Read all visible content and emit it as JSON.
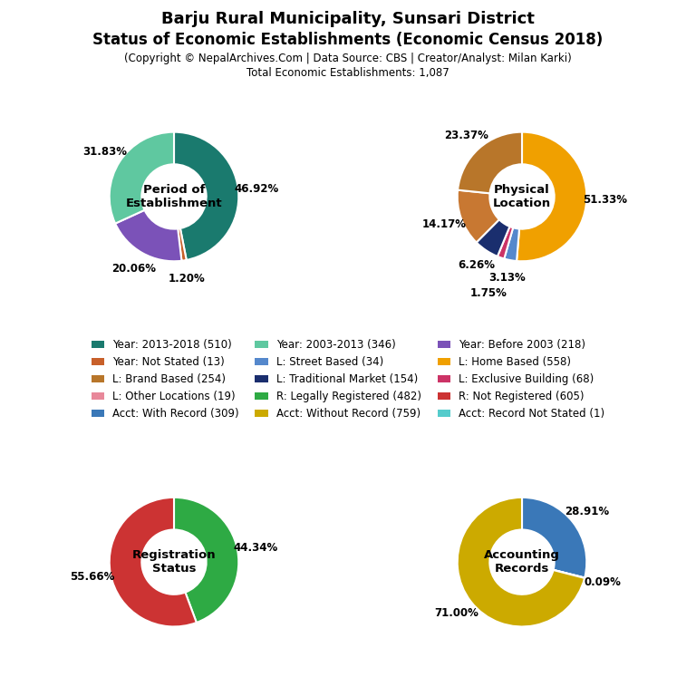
{
  "title": [
    "Barju Rural Municipality, Sunsari District",
    "Status of Economic Establishments (Economic Census 2018)"
  ],
  "subtitle": [
    "(Copyright © NepalArchives.Com | Data Source: CBS | Creator/Analyst: Milan Karki)",
    "Total Economic Establishments: 1,087"
  ],
  "chart_data": [
    {
      "type": "pie",
      "annotations": [
        "Period of\nEstablishment"
      ],
      "values": [
        46.92,
        1.2,
        20.06,
        31.83
      ],
      "value_labels": [
        "46.92%",
        "1.20%",
        "20.06%",
        "31.83%"
      ],
      "colors": [
        "#1a7a6e",
        "#c8602a",
        "#7b52b8",
        "#5fc8a0"
      ],
      "data_labels": true
    },
    {
      "type": "pie",
      "annotations": [
        "Physical\nLocation"
      ],
      "values": [
        51.33,
        3.13,
        1.75,
        6.26,
        14.17,
        23.37
      ],
      "value_labels": [
        "51.33%",
        "3.13%",
        "1.75%",
        "6.26%",
        "14.17%",
        "23.37%"
      ],
      "colors": [
        "#f0a000",
        "#5588cc",
        "#cc3366",
        "#1a2e6e",
        "#c87832",
        "#b8762a"
      ],
      "data_labels": true
    },
    {
      "type": "pie",
      "annotations": [
        "Registration\nStatus"
      ],
      "values": [
        44.34,
        55.66
      ],
      "value_labels": [
        "44.34%",
        "55.66%"
      ],
      "colors": [
        "#2eaa44",
        "#cc3333"
      ],
      "data_labels": true
    },
    {
      "type": "pie",
      "annotations": [
        "Accounting\nRecords"
      ],
      "values": [
        28.91,
        0.09,
        71.0
      ],
      "value_labels": [
        "28.91%",
        "0.09%",
        "71.00%"
      ],
      "colors": [
        "#3a78b8",
        "#55cccc",
        "#ccaa00"
      ],
      "data_labels": true
    }
  ],
  "legend_entries": [
    [
      {
        "name": "Year: 2013-2018 (510)",
        "color": "#1a7a6e"
      },
      {
        "name": "Year: Not Stated (13)",
        "color": "#c8602a"
      },
      {
        "name": "L: Brand Based (254)",
        "color": "#b8762a"
      },
      {
        "name": "L: Other Locations (19)",
        "color": "#e8889a"
      },
      {
        "name": "Acct: With Record (309)",
        "color": "#3a78b8"
      }
    ],
    [
      {
        "name": "Year: 2003-2013 (346)",
        "color": "#5fc8a0"
      },
      {
        "name": "L: Street Based (34)",
        "color": "#5588cc"
      },
      {
        "name": "L: Traditional Market (154)",
        "color": "#1a2e6e"
      },
      {
        "name": "R: Legally Registered (482)",
        "color": "#2eaa44"
      },
      {
        "name": "Acct: Without Record (759)",
        "color": "#ccaa00"
      }
    ],
    [
      {
        "name": "Year: Before 2003 (218)",
        "color": "#7b52b8"
      },
      {
        "name": "L: Home Based (558)",
        "color": "#f0a000"
      },
      {
        "name": "L: Exclusive Building (68)",
        "color": "#cc3366"
      },
      {
        "name": "R: Not Registered (605)",
        "color": "#cc3333"
      },
      {
        "name": "Acct: Record Not Stated (1)",
        "color": "#55cccc"
      }
    ]
  ]
}
